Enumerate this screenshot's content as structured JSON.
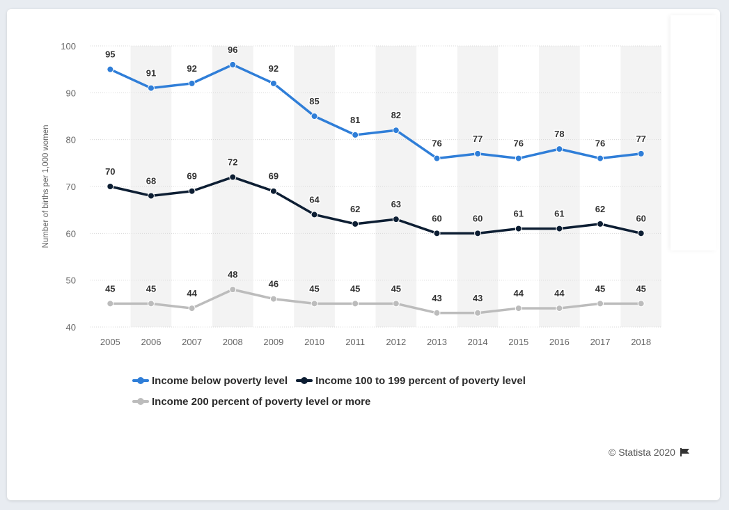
{
  "chart_data": {
    "type": "line",
    "categories": [
      "2005",
      "2006",
      "2007",
      "2008",
      "2009",
      "2010",
      "2011",
      "2012",
      "2013",
      "2014",
      "2015",
      "2016",
      "2017",
      "2018"
    ],
    "series": [
      {
        "name": "Income below poverty level",
        "color": "#2f7ed8",
        "values": [
          95,
          91,
          92,
          96,
          92,
          85,
          81,
          82,
          76,
          77,
          76,
          78,
          76,
          77
        ]
      },
      {
        "name": "Income 100 to 199 percent of poverty level",
        "color": "#0d1e33",
        "values": [
          70,
          68,
          69,
          72,
          69,
          64,
          62,
          63,
          60,
          60,
          61,
          61,
          62,
          60
        ]
      },
      {
        "name": "Income 200 percent of poverty level or more",
        "color": "#bcbcbc",
        "values": [
          45,
          45,
          44,
          48,
          46,
          45,
          45,
          45,
          43,
          43,
          44,
          44,
          45,
          45
        ]
      }
    ],
    "ylabel": "Number of births per 1,000 women",
    "xlabel": "",
    "ylim": [
      40,
      100
    ],
    "yticks": [
      40,
      50,
      60,
      70,
      80,
      90,
      100
    ],
    "grid": true,
    "legend_position": "bottom"
  },
  "legend": {
    "row1": [
      "Income below poverty level",
      "Income 100 to 199 percent of poverty level"
    ],
    "row2": [
      "Income 200 percent of poverty level or more"
    ]
  },
  "credit": {
    "text": "© Statista 2020",
    "icon": "flag-icon"
  }
}
